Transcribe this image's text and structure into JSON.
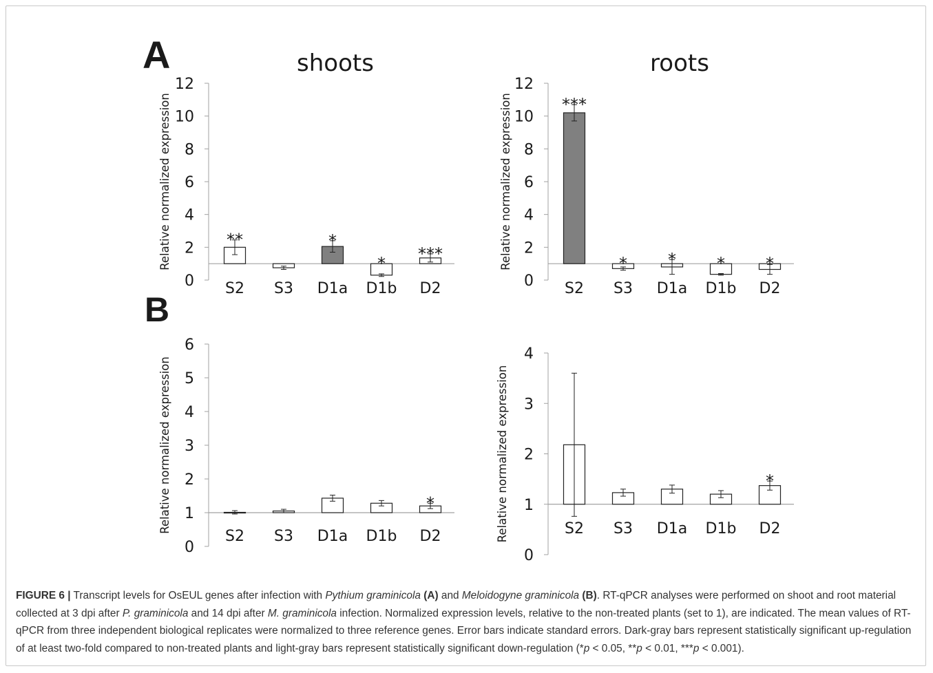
{
  "colors": {
    "dark_gray": "#808080",
    "white_bar": "#ffffff",
    "axis": "#a0a0a0",
    "text": "#1a1a1a"
  },
  "panel_labels": {
    "A": "A",
    "B": "B"
  },
  "chart_data": [
    {
      "id": "A-shoots",
      "panel": "A",
      "type": "bar",
      "title": "shoots",
      "ylabel": "Relative normalized expression",
      "xlabel": "",
      "ylim": [
        0,
        12
      ],
      "yticks": [
        0,
        2,
        4,
        6,
        8,
        10,
        12
      ],
      "baseline": 1,
      "categories": [
        "S2",
        "S3",
        "D1a",
        "D1b",
        "D2"
      ],
      "values": [
        2.0,
        0.75,
        2.05,
        0.3,
        1.35
      ],
      "errors": [
        0.45,
        0.1,
        0.35,
        0.08,
        0.25
      ],
      "significance": [
        "**",
        "",
        "*",
        "*",
        "***"
      ],
      "fills": [
        "white",
        "white",
        "dark",
        "white",
        "white"
      ]
    },
    {
      "id": "A-roots",
      "panel": "A",
      "type": "bar",
      "title": "roots",
      "ylabel": "Relative normalized expression",
      "xlabel": "",
      "ylim": [
        0,
        12
      ],
      "yticks": [
        0,
        2,
        4,
        6,
        8,
        10,
        12
      ],
      "baseline": 1,
      "categories": [
        "S2",
        "S3",
        "D1a",
        "D1b",
        "D2"
      ],
      "values": [
        10.2,
        0.7,
        0.8,
        0.35,
        0.65
      ],
      "errors": [
        0.5,
        0.1,
        0.45,
        0.05,
        0.3
      ],
      "significance": [
        "***",
        "*",
        "*",
        "*",
        "*"
      ],
      "fills": [
        "dark",
        "white",
        "white",
        "white",
        "white"
      ]
    },
    {
      "id": "B-shoots",
      "panel": "B",
      "type": "bar",
      "title": "",
      "ylabel": "Relative normalized expression",
      "xlabel": "",
      "ylim": [
        0,
        6
      ],
      "yticks": [
        0,
        1,
        2,
        3,
        4,
        5,
        6
      ],
      "baseline": 1,
      "categories": [
        "S2",
        "S3",
        "D1a",
        "D1b",
        "D2"
      ],
      "values": [
        1.01,
        1.05,
        1.43,
        1.28,
        1.2
      ],
      "errors": [
        0.05,
        0.05,
        0.09,
        0.08,
        0.08
      ],
      "significance": [
        "",
        "",
        "",
        "",
        "*"
      ],
      "fills": [
        "white",
        "white",
        "white",
        "white",
        "white"
      ]
    },
    {
      "id": "B-roots",
      "panel": "B",
      "type": "bar",
      "title": "",
      "ylabel": "Relative normalized expression",
      "xlabel": "",
      "ylim": [
        0,
        4
      ],
      "yticks": [
        0,
        1,
        2,
        3,
        4
      ],
      "baseline": 1,
      "categories": [
        "S2",
        "S3",
        "D1a",
        "D1b",
        "D2"
      ],
      "values": [
        2.18,
        1.23,
        1.3,
        1.2,
        1.37
      ],
      "errors": [
        1.42,
        0.07,
        0.08,
        0.07,
        0.09
      ],
      "significance": [
        "",
        "",
        "",
        "",
        "*"
      ],
      "fills": [
        "white",
        "white",
        "white",
        "white",
        "white"
      ]
    }
  ],
  "caption": {
    "figure_label": "FIGURE 6 |",
    "t1": " Transcript levels for OsEUL genes after infection with ",
    "i1": "Pythium graminicola",
    "b1": " (A)",
    "t2": " and ",
    "i2": "Meloidogyne graminicola",
    "b2": " (B)",
    "t3": ". RT-qPCR analyses were performed on shoot and root material collected at 3 dpi after ",
    "i3": "P. graminicola",
    "t4": " and 14 dpi after ",
    "i4": "M. graminicola",
    "t5": " infection. Normalized expression levels, relative to the non-treated plants (set to 1), are indicated. The mean values of RT-qPCR from three independent biological replicates were normalized to three reference genes. Error bars indicate standard errors. Dark-gray bars represent statistically significant up-regulation of at least two-fold compared to non-treated plants and light-gray bars represent statistically significant down-regulation (*",
    "i5": "p",
    "t6": " < 0.05, **",
    "i6": "p",
    "t7": " < 0.01, ***",
    "i7": "p",
    "t8": " < 0.001)."
  }
}
